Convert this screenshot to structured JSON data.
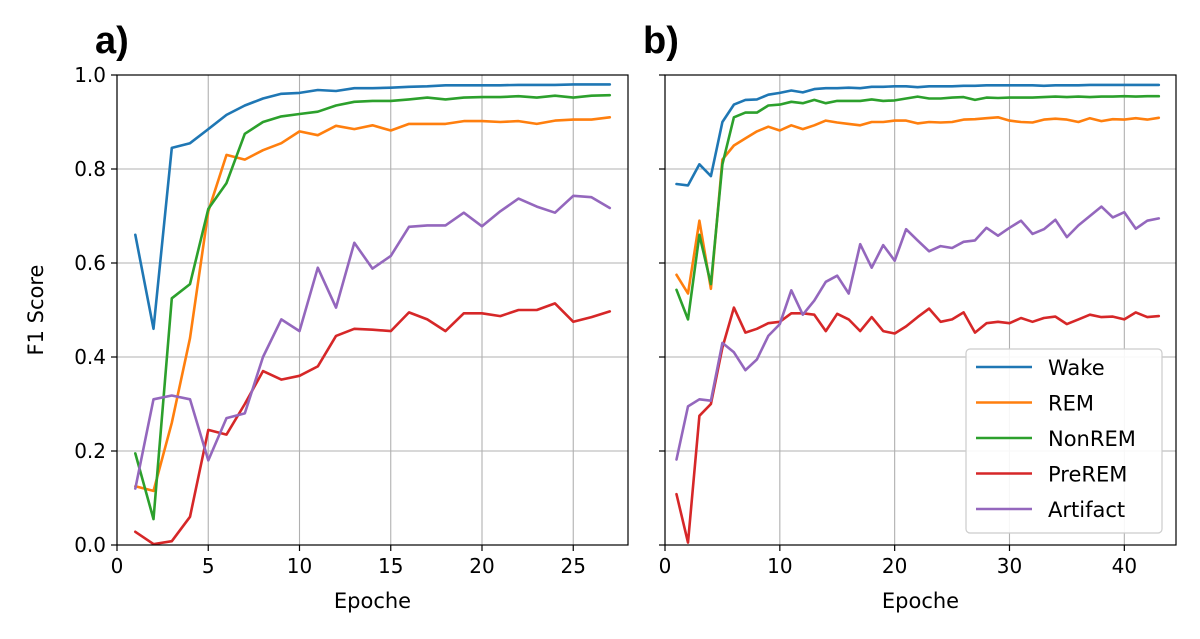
{
  "chart_data": [
    {
      "panel_label": "a)",
      "type": "line",
      "xlabel": "Epoche",
      "ylabel": "F1 Score",
      "xlim": [
        0,
        28
      ],
      "ylim": [
        0.0,
        1.0
      ],
      "xticks": [
        0,
        5,
        10,
        15,
        20,
        25
      ],
      "yticks": [
        0.0,
        0.2,
        0.4,
        0.6,
        0.8,
        1.0
      ],
      "ytick_labels": [
        "0.0",
        "0.2",
        "0.4",
        "0.6",
        "0.8",
        "1.0"
      ],
      "grid": true,
      "x": [
        1,
        2,
        3,
        4,
        5,
        6,
        7,
        8,
        9,
        10,
        11,
        12,
        13,
        14,
        15,
        16,
        17,
        18,
        19,
        20,
        21,
        22,
        23,
        24,
        25,
        26,
        27
      ],
      "series": [
        {
          "name": "Wake",
          "color": "#1f77b4",
          "values": [
            0.66,
            0.46,
            0.845,
            0.855,
            0.885,
            0.915,
            0.935,
            0.95,
            0.96,
            0.962,
            0.968,
            0.966,
            0.972,
            0.972,
            0.973,
            0.975,
            0.976,
            0.978,
            0.978,
            0.978,
            0.978,
            0.979,
            0.979,
            0.979,
            0.98,
            0.98,
            0.98
          ]
        },
        {
          "name": "REM",
          "color": "#ff7f0e",
          "values": [
            0.125,
            0.115,
            0.26,
            0.44,
            0.71,
            0.83,
            0.82,
            0.84,
            0.855,
            0.88,
            0.872,
            0.892,
            0.885,
            0.893,
            0.882,
            0.896,
            0.896,
            0.896,
            0.902,
            0.902,
            0.9,
            0.902,
            0.896,
            0.903,
            0.905,
            0.905,
            0.91
          ]
        },
        {
          "name": "NonREM",
          "color": "#2ca02c",
          "values": [
            0.195,
            0.055,
            0.525,
            0.555,
            0.715,
            0.77,
            0.875,
            0.9,
            0.912,
            0.917,
            0.922,
            0.935,
            0.943,
            0.945,
            0.945,
            0.948,
            0.952,
            0.948,
            0.952,
            0.953,
            0.953,
            0.955,
            0.952,
            0.956,
            0.952,
            0.956,
            0.957
          ]
        },
        {
          "name": "PreREM",
          "color": "#d62728",
          "values": [
            0.028,
            0.002,
            0.008,
            0.06,
            0.245,
            0.235,
            0.3,
            0.37,
            0.352,
            0.36,
            0.38,
            0.445,
            0.46,
            0.458,
            0.455,
            0.495,
            0.48,
            0.455,
            0.493,
            0.493,
            0.487,
            0.5,
            0.5,
            0.514,
            0.475,
            0.485,
            0.497
          ]
        },
        {
          "name": "Artifact",
          "color": "#9467bd",
          "values": [
            0.12,
            0.31,
            0.318,
            0.31,
            0.18,
            0.27,
            0.28,
            0.4,
            0.48,
            0.455,
            0.59,
            0.505,
            0.643,
            0.588,
            0.615,
            0.677,
            0.68,
            0.68,
            0.707,
            0.678,
            0.71,
            0.737,
            0.72,
            0.707,
            0.743,
            0.74,
            0.717
          ]
        }
      ]
    },
    {
      "panel_label": "b)",
      "type": "line",
      "xlabel": "Epoche",
      "ylabel": "",
      "xlim": [
        0,
        44.5
      ],
      "ylim": [
        0.0,
        1.0
      ],
      "xticks": [
        0,
        10,
        20,
        30,
        40
      ],
      "yticks": [
        0.0,
        0.2,
        0.4,
        0.6,
        0.8,
        1.0
      ],
      "grid": true,
      "legend_position": "lower-right",
      "x": [
        1,
        2,
        3,
        4,
        5,
        6,
        7,
        8,
        9,
        10,
        11,
        12,
        13,
        14,
        15,
        16,
        17,
        18,
        19,
        20,
        21,
        22,
        23,
        24,
        25,
        26,
        27,
        28,
        29,
        30,
        31,
        32,
        33,
        34,
        35,
        36,
        37,
        38,
        39,
        40,
        41,
        42,
        43
      ],
      "series": [
        {
          "name": "Wake",
          "color": "#1f77b4",
          "values": [
            0.768,
            0.765,
            0.81,
            0.785,
            0.9,
            0.937,
            0.947,
            0.948,
            0.958,
            0.962,
            0.967,
            0.963,
            0.97,
            0.972,
            0.972,
            0.973,
            0.972,
            0.975,
            0.975,
            0.976,
            0.976,
            0.974,
            0.976,
            0.976,
            0.976,
            0.977,
            0.977,
            0.978,
            0.978,
            0.978,
            0.978,
            0.978,
            0.977,
            0.978,
            0.978,
            0.978,
            0.979,
            0.979,
            0.979,
            0.979,
            0.979,
            0.979,
            0.979
          ]
        },
        {
          "name": "REM",
          "color": "#ff7f0e",
          "values": [
            0.575,
            0.535,
            0.69,
            0.545,
            0.82,
            0.85,
            0.865,
            0.88,
            0.89,
            0.882,
            0.893,
            0.885,
            0.893,
            0.903,
            0.899,
            0.896,
            0.893,
            0.9,
            0.9,
            0.903,
            0.903,
            0.897,
            0.9,
            0.899,
            0.9,
            0.905,
            0.906,
            0.908,
            0.91,
            0.903,
            0.9,
            0.899,
            0.905,
            0.907,
            0.905,
            0.9,
            0.908,
            0.902,
            0.906,
            0.905,
            0.908,
            0.905,
            0.909
          ]
        },
        {
          "name": "NonREM",
          "color": "#2ca02c",
          "values": [
            0.543,
            0.48,
            0.66,
            0.555,
            0.81,
            0.91,
            0.92,
            0.92,
            0.935,
            0.937,
            0.943,
            0.94,
            0.947,
            0.94,
            0.945,
            0.945,
            0.945,
            0.948,
            0.945,
            0.946,
            0.95,
            0.954,
            0.95,
            0.95,
            0.952,
            0.953,
            0.947,
            0.952,
            0.951,
            0.952,
            0.952,
            0.952,
            0.953,
            0.954,
            0.953,
            0.954,
            0.953,
            0.954,
            0.954,
            0.955,
            0.954,
            0.955,
            0.955
          ]
        },
        {
          "name": "PreREM",
          "color": "#d62728",
          "values": [
            0.108,
            0.005,
            0.275,
            0.3,
            0.42,
            0.505,
            0.452,
            0.46,
            0.472,
            0.475,
            0.493,
            0.493,
            0.49,
            0.455,
            0.492,
            0.48,
            0.455,
            0.485,
            0.455,
            0.45,
            0.465,
            0.485,
            0.503,
            0.475,
            0.48,
            0.495,
            0.452,
            0.472,
            0.475,
            0.472,
            0.483,
            0.475,
            0.483,
            0.486,
            0.47,
            0.48,
            0.49,
            0.485,
            0.486,
            0.48,
            0.495,
            0.485,
            0.487
          ]
        },
        {
          "name": "Artifact",
          "color": "#9467bd",
          "values": [
            0.182,
            0.295,
            0.31,
            0.307,
            0.43,
            0.41,
            0.372,
            0.395,
            0.445,
            0.47,
            0.542,
            0.49,
            0.52,
            0.56,
            0.573,
            0.535,
            0.64,
            0.59,
            0.638,
            0.605,
            0.672,
            0.648,
            0.625,
            0.636,
            0.632,
            0.645,
            0.648,
            0.675,
            0.658,
            0.675,
            0.69,
            0.662,
            0.672,
            0.692,
            0.655,
            0.68,
            0.7,
            0.72,
            0.697,
            0.708,
            0.673,
            0.69,
            0.695
          ]
        }
      ]
    }
  ]
}
